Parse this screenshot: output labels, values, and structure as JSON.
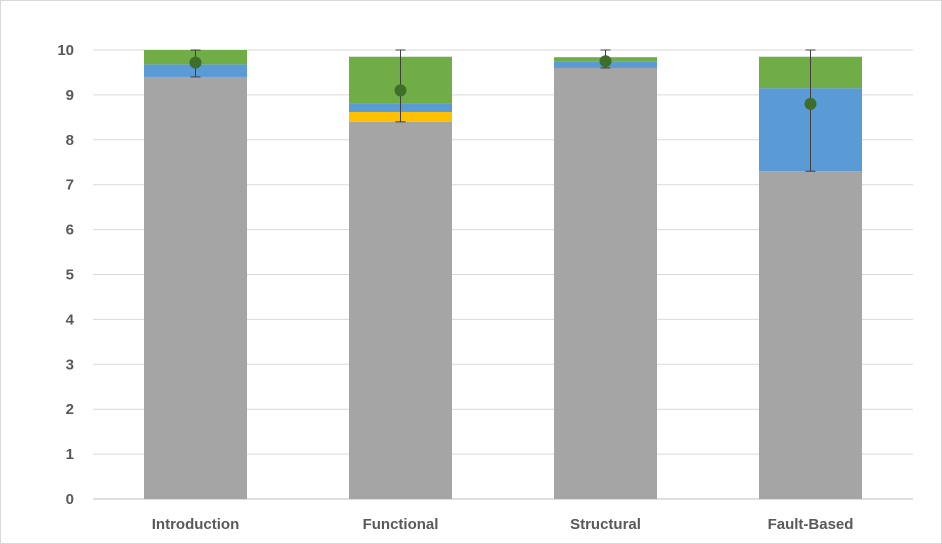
{
  "chart_data": {
    "type": "bar",
    "stacked": true,
    "title": "",
    "xlabel": "",
    "ylabel": "",
    "ylim": [
      0,
      10
    ],
    "yticks": [
      0,
      1,
      2,
      3,
      4,
      5,
      6,
      7,
      8,
      9,
      10
    ],
    "grid": true,
    "legend": "none",
    "categories": [
      "Introduction",
      "Functional",
      "Structural",
      "Fault-Based"
    ],
    "series": [
      {
        "color": "#a5a5a5",
        "values": [
          9.4,
          8.4,
          9.6,
          7.3
        ]
      },
      {
        "color": "#ffc000",
        "values": [
          0,
          0.22,
          0,
          0
        ]
      },
      {
        "color": "#5b9bd5",
        "values": [
          0.28,
          0.18,
          0.14,
          1.85
        ]
      },
      {
        "color": "#70ad47",
        "values": [
          0.32,
          1.05,
          0.1,
          0.7
        ]
      }
    ],
    "mean_markers": {
      "color": "#3f6e2a",
      "values": [
        9.72,
        9.1,
        9.75,
        8.8
      ]
    },
    "error_bars": {
      "color": "#404040",
      "low": [
        9.4,
        8.4,
        9.6,
        7.3
      ],
      "high": [
        10.0,
        10.0,
        10.0,
        10.0
      ]
    },
    "colors": {
      "grid": "#d9d9d9",
      "axis": "#bfbfbf",
      "text": "#595959"
    }
  }
}
